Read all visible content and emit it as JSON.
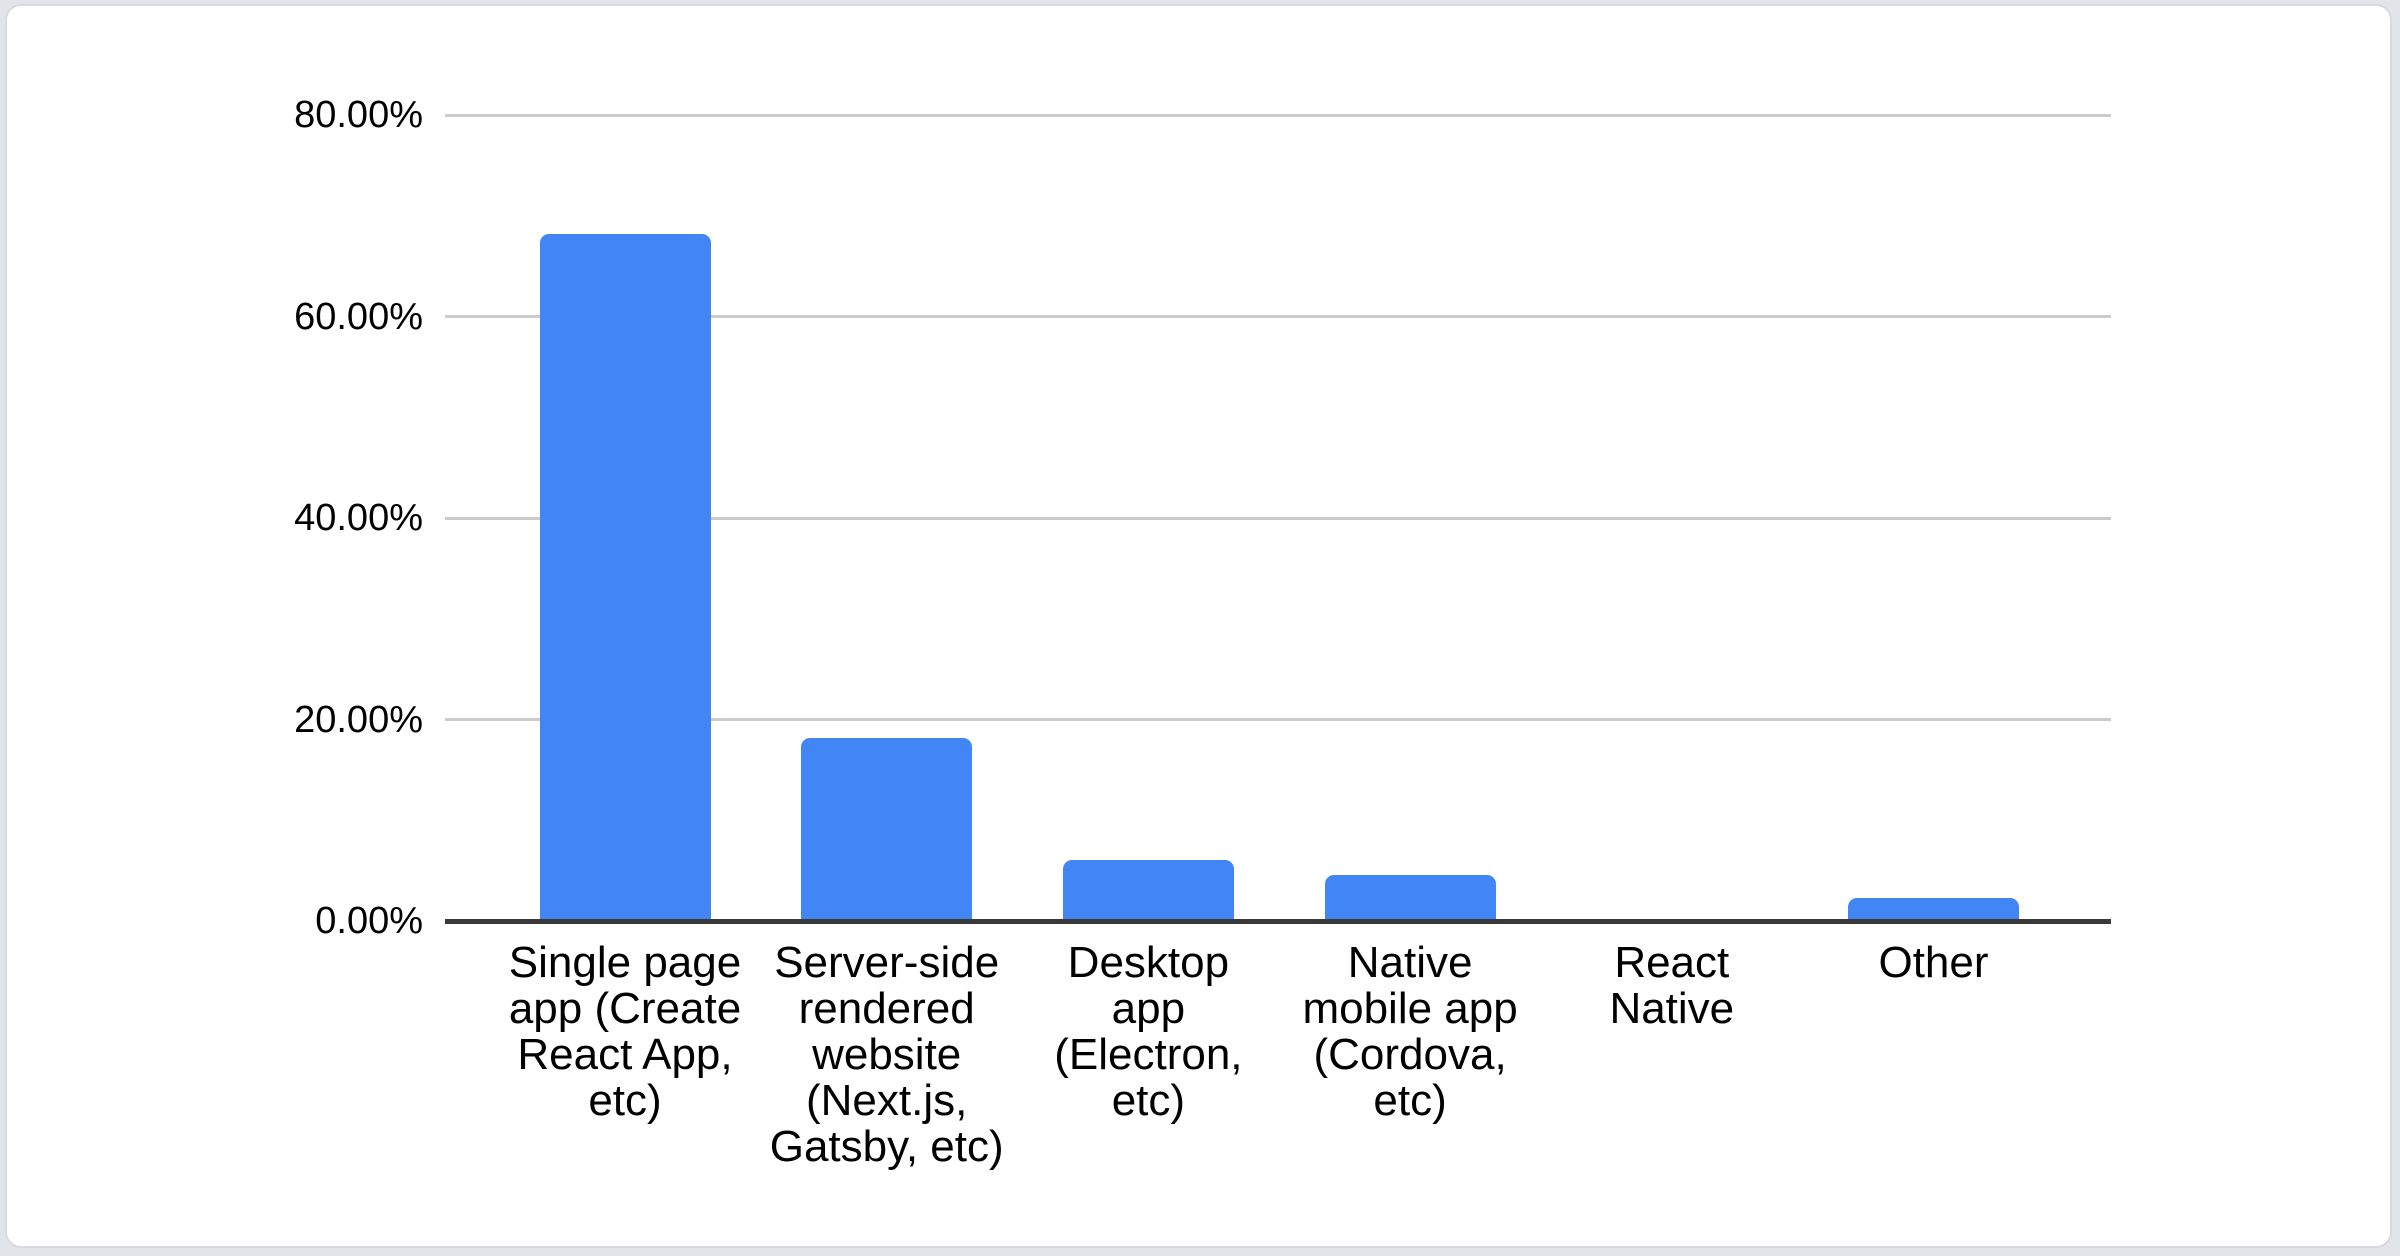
{
  "chart_data": {
    "type": "bar",
    "title": "",
    "xlabel": "",
    "ylabel": "",
    "categories": [
      "Single page app (Create React App, etc)",
      "Server-side rendered website (Next.js, Gatsby, etc)",
      "Desktop app (Electron, etc)",
      "Native mobile app (Cordova, etc)",
      "React Native",
      "Other"
    ],
    "categories_wrapped": [
      "Single page\napp (Create\nReact App,\netc)",
      "Server-side\nrendered\nwebsite\n(Next.js,\nGatsby, etc)",
      "Desktop\napp\n(Electron,\netc)",
      "Native\nmobile app\n(Cordova,\netc)",
      "React\nNative",
      "Other"
    ],
    "values": [
      68.2,
      18.2,
      6.1,
      4.6,
      0,
      2.3
    ],
    "value_unit": "%",
    "y_ticks": [
      "0.00%",
      "20.00%",
      "40.00%",
      "60.00%",
      "80.00%"
    ],
    "y_tick_values": [
      0,
      20,
      40,
      60,
      80
    ],
    "ylim": [
      0,
      80
    ],
    "grid": true,
    "legend": "none",
    "colors": {
      "bar": "#4285f4",
      "gridline": "#cbcbcb",
      "axis_line": "#3a3a3a",
      "label_text": "#000000",
      "card_background": "#ffffff",
      "card_border": "#d7dade",
      "page_background": "#e1e4e8"
    }
  }
}
